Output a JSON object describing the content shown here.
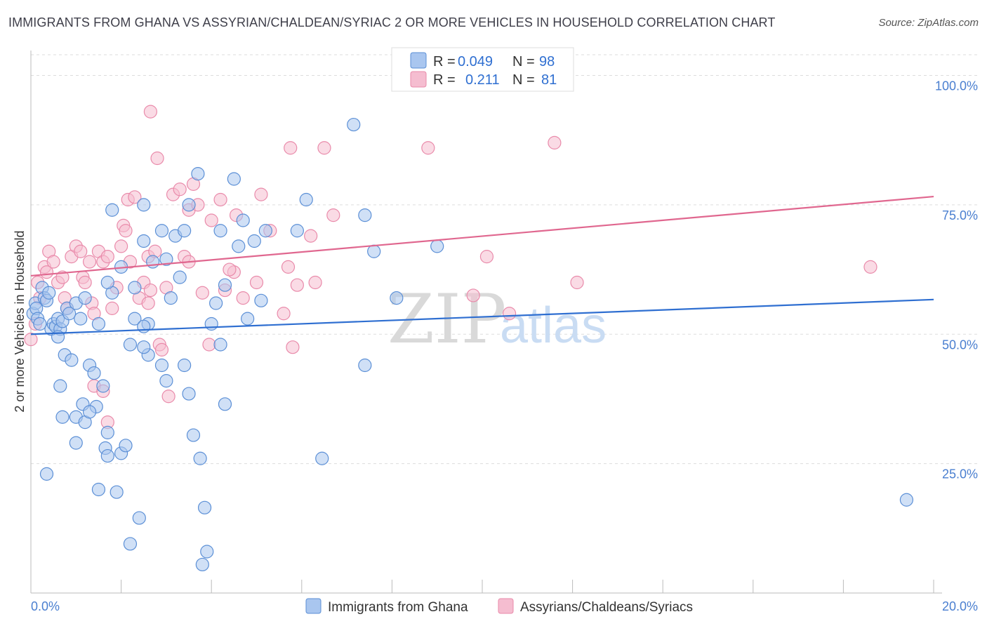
{
  "title": "IMMIGRANTS FROM GHANA VS ASSYRIAN/CHALDEAN/SYRIAC 2 OR MORE VEHICLES IN HOUSEHOLD CORRELATION CHART",
  "source": "Source: ZipAtlas.com",
  "watermark": {
    "zip": "ZIP",
    "atlas": "atlas"
  },
  "legend": {
    "rows": [
      {
        "r_label": "R =",
        "r_value": "0.049",
        "n_label": "N =",
        "n_value": "98"
      },
      {
        "r_label": "R =",
        "r_value": "0.211",
        "n_label": "N =",
        "n_value": "81"
      }
    ]
  },
  "colors": {
    "blue_fill": "#a9c6ef",
    "blue_stroke": "#5b8fd6",
    "blue_line": "#2f6fd1",
    "pink_fill": "#f5bdd0",
    "pink_stroke": "#e98aaa",
    "pink_line": "#e0678f",
    "grid": "#dddddd",
    "axis_text": "#4a7fd0"
  },
  "chart_data": {
    "type": "scatter",
    "title": "IMMIGRANTS FROM GHANA VS ASSYRIAN/CHALDEAN/SYRIAC 2 OR MORE VEHICLES IN HOUSEHOLD CORRELATION CHART",
    "xlabel": "",
    "ylabel": "2 or more Vehicles in Household",
    "xlim": [
      0,
      20
    ],
    "ylim": [
      0,
      104
    ],
    "x_tick_labels": [
      "0.0%",
      "20.0%"
    ],
    "y_ticks": [
      25,
      50,
      75,
      100
    ],
    "y_tick_labels": [
      "25.0%",
      "50.0%",
      "75.0%",
      "100.0%"
    ],
    "series": [
      {
        "name": "Immigrants from Ghana",
        "color": "blue",
        "r": 0.049,
        "n": 98,
        "trend": {
          "x": [
            0,
            20
          ],
          "y": [
            50.0,
            56.7
          ]
        },
        "points": [
          [
            0.05,
            54
          ],
          [
            0.1,
            56
          ],
          [
            0.12,
            55
          ],
          [
            0.15,
            53
          ],
          [
            0.2,
            52
          ],
          [
            0.25,
            59
          ],
          [
            0.3,
            57
          ],
          [
            0.35,
            56.5
          ],
          [
            0.4,
            58
          ],
          [
            0.45,
            51
          ],
          [
            0.5,
            52
          ],
          [
            0.55,
            51.5
          ],
          [
            0.6,
            53
          ],
          [
            0.65,
            51
          ],
          [
            0.7,
            52.5
          ],
          [
            0.75,
            46
          ],
          [
            0.8,
            55
          ],
          [
            0.85,
            54
          ],
          [
            0.9,
            45
          ],
          [
            1.0,
            56
          ],
          [
            1.1,
            53
          ],
          [
            1.2,
            57
          ],
          [
            1.3,
            44
          ],
          [
            1.4,
            42.5
          ],
          [
            1.6,
            40
          ],
          [
            0.65,
            40
          ],
          [
            1.0,
            34
          ],
          [
            1.2,
            33
          ],
          [
            1.15,
            36.5
          ],
          [
            1.45,
            36
          ],
          [
            1.3,
            35
          ],
          [
            0.7,
            34
          ],
          [
            1.0,
            29
          ],
          [
            1.7,
            31
          ],
          [
            1.65,
            28
          ],
          [
            2.0,
            27
          ],
          [
            1.7,
            26.5
          ],
          [
            2.1,
            28.5
          ],
          [
            0.35,
            23
          ],
          [
            1.5,
            20
          ],
          [
            1.9,
            19.5
          ],
          [
            2.4,
            14.5
          ],
          [
            2.2,
            9.5
          ],
          [
            3.8,
            5.5
          ],
          [
            3.9,
            8
          ],
          [
            3.85,
            16.5
          ],
          [
            3.75,
            26
          ],
          [
            3.6,
            30.5
          ],
          [
            3.5,
            38.5
          ],
          [
            4.3,
            36.5
          ],
          [
            3.4,
            44
          ],
          [
            2.6,
            46
          ],
          [
            2.5,
            47.5
          ],
          [
            2.2,
            48
          ],
          [
            2.3,
            53
          ],
          [
            2.6,
            52
          ],
          [
            2.5,
            51.5
          ],
          [
            2.9,
            44
          ],
          [
            3.0,
            41
          ],
          [
            1.8,
            58
          ],
          [
            1.7,
            60
          ],
          [
            2.0,
            63
          ],
          [
            2.3,
            59
          ],
          [
            2.5,
            68
          ],
          [
            2.7,
            64
          ],
          [
            2.9,
            70
          ],
          [
            3.0,
            64.5
          ],
          [
            3.2,
            69
          ],
          [
            3.4,
            70
          ],
          [
            3.7,
            81
          ],
          [
            3.5,
            75
          ],
          [
            3.3,
            61
          ],
          [
            3.1,
            57
          ],
          [
            4.0,
            52
          ],
          [
            4.3,
            59.5
          ],
          [
            4.1,
            56
          ],
          [
            4.2,
            70
          ],
          [
            4.5,
            80
          ],
          [
            4.6,
            67
          ],
          [
            4.7,
            72
          ],
          [
            4.95,
            68
          ],
          [
            5.2,
            70
          ],
          [
            5.1,
            56.5
          ],
          [
            4.8,
            53
          ],
          [
            1.8,
            74
          ],
          [
            2.5,
            75
          ],
          [
            4.2,
            48
          ],
          [
            6.1,
            76
          ],
          [
            7.4,
            73
          ],
          [
            5.9,
            70
          ],
          [
            7.15,
            90.5
          ],
          [
            6.45,
            26
          ],
          [
            7.4,
            44
          ],
          [
            7.6,
            66
          ],
          [
            8.1,
            57
          ],
          [
            9.0,
            67
          ],
          [
            19.4,
            18
          ],
          [
            1.5,
            52
          ],
          [
            0.6,
            49.5
          ]
        ]
      },
      {
        "name": "Assyrians/Chaldeans/Syriacs",
        "color": "pink",
        "r": 0.211,
        "n": 81,
        "trend": {
          "x": [
            0,
            20
          ],
          "y": [
            61.3,
            76.6
          ]
        },
        "points": [
          [
            0.0,
            49
          ],
          [
            0.1,
            52
          ],
          [
            0.15,
            60
          ],
          [
            0.2,
            57
          ],
          [
            0.3,
            63
          ],
          [
            0.35,
            62
          ],
          [
            0.4,
            66
          ],
          [
            0.5,
            64
          ],
          [
            0.6,
            60
          ],
          [
            0.7,
            61
          ],
          [
            0.75,
            57
          ],
          [
            0.8,
            55
          ],
          [
            0.9,
            65
          ],
          [
            1.0,
            67
          ],
          [
            1.1,
            66
          ],
          [
            1.15,
            61
          ],
          [
            1.2,
            60
          ],
          [
            1.3,
            64
          ],
          [
            1.35,
            56
          ],
          [
            1.4,
            54
          ],
          [
            1.5,
            66
          ],
          [
            1.6,
            64
          ],
          [
            1.7,
            65
          ],
          [
            1.8,
            55
          ],
          [
            1.9,
            59
          ],
          [
            2.0,
            67
          ],
          [
            2.05,
            71
          ],
          [
            2.1,
            70
          ],
          [
            2.2,
            64
          ],
          [
            2.15,
            76
          ],
          [
            2.3,
            76.5
          ],
          [
            2.4,
            57
          ],
          [
            2.5,
            60
          ],
          [
            2.6,
            56
          ],
          [
            2.65,
            58.5
          ],
          [
            2.6,
            65
          ],
          [
            2.75,
            66
          ],
          [
            2.85,
            48
          ],
          [
            2.9,
            47
          ],
          [
            3.0,
            59
          ],
          [
            3.05,
            38
          ],
          [
            3.15,
            77
          ],
          [
            3.3,
            78
          ],
          [
            3.5,
            74
          ],
          [
            3.6,
            79
          ],
          [
            3.4,
            65
          ],
          [
            3.7,
            75
          ],
          [
            3.8,
            58
          ],
          [
            3.95,
            48
          ],
          [
            4.0,
            72
          ],
          [
            4.2,
            76
          ],
          [
            4.3,
            58.5
          ],
          [
            4.5,
            62
          ],
          [
            4.55,
            73
          ],
          [
            4.7,
            57
          ],
          [
            5.0,
            60
          ],
          [
            5.1,
            77
          ],
          [
            5.3,
            70
          ],
          [
            5.6,
            54
          ],
          [
            5.7,
            63
          ],
          [
            5.75,
            86
          ],
          [
            5.8,
            47.5
          ],
          [
            5.9,
            59.5
          ],
          [
            6.2,
            69
          ],
          [
            6.3,
            60
          ],
          [
            6.5,
            86
          ],
          [
            6.7,
            73
          ],
          [
            2.65,
            93
          ],
          [
            2.8,
            84
          ],
          [
            1.4,
            40
          ],
          [
            1.6,
            39
          ],
          [
            1.7,
            33
          ],
          [
            8.8,
            86
          ],
          [
            9.8,
            57.5
          ],
          [
            10.1,
            65
          ],
          [
            10.6,
            54
          ],
          [
            11.6,
            87
          ],
          [
            12.1,
            60
          ],
          [
            18.6,
            63
          ],
          [
            3.5,
            64
          ],
          [
            4.4,
            62.5
          ]
        ]
      }
    ]
  },
  "bottom_legend": [
    {
      "label": "Immigrants from Ghana"
    },
    {
      "label": "Assyrians/Chaldeans/Syriacs"
    }
  ]
}
